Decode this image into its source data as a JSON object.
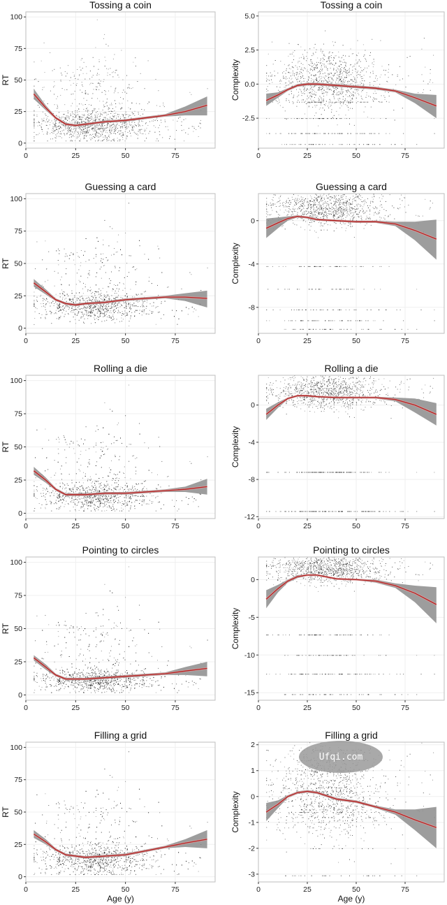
{
  "watermark": "Ufqi.com",
  "colors": {
    "fit_line": "#b22222",
    "ci_band": "#8c8c8c",
    "points": "#1a1a1a",
    "frame": "#bdbdbd",
    "grid": "#efefef"
  },
  "chart_data": [
    {
      "type": "scatter",
      "title": "Tossing a coin",
      "xlabel": "",
      "ylabel": "RT",
      "xlim": [
        0,
        95
      ],
      "ylim": [
        -4,
        104
      ],
      "xticks": [
        0,
        25,
        50,
        75
      ],
      "yticks": [
        0,
        25,
        50,
        75,
        100
      ],
      "tick_labels": [
        "0",
        "25",
        "50",
        "75",
        "100"
      ],
      "x_tick_labels": [
        "0",
        "25",
        "50",
        "75"
      ],
      "fit": {
        "x": [
          4,
          10,
          15,
          20,
          25,
          30,
          40,
          50,
          60,
          70,
          80,
          91
        ],
        "y": [
          39,
          28,
          20,
          15,
          14,
          15,
          17,
          18,
          20,
          22,
          25,
          30
        ],
        "ci_low": [
          35,
          26,
          19,
          14,
          13,
          14,
          16,
          17,
          19,
          21,
          22,
          22
        ],
        "ci_high": [
          43,
          30,
          21,
          16,
          15,
          16,
          18,
          19,
          21,
          23,
          29,
          37
        ]
      },
      "scatter": {
        "n": 1300,
        "center_x": 33,
        "center_y": 14,
        "spread_x": 14,
        "spread_y": 10,
        "discrete_rows": []
      }
    },
    {
      "type": "scatter",
      "title": "Tossing a coin",
      "xlabel": "",
      "ylabel": "Complexity",
      "xlim": [
        0,
        95
      ],
      "ylim": [
        -4.7,
        5.3
      ],
      "xticks": [
        0,
        25,
        50,
        75
      ],
      "yticks": [
        -2.5,
        0.0,
        2.5,
        5.0
      ],
      "tick_labels": [
        "-2.5",
        "0.0",
        "2.5",
        "5.0"
      ],
      "x_tick_labels": [
        "0",
        "25",
        "50",
        "75"
      ],
      "fit": {
        "x": [
          4,
          10,
          15,
          20,
          25,
          30,
          40,
          50,
          60,
          70,
          80,
          91
        ],
        "y": [
          -1.2,
          -0.8,
          -0.4,
          -0.1,
          0.0,
          0.0,
          -0.1,
          -0.2,
          -0.3,
          -0.5,
          -1.0,
          -1.6
        ],
        "ci_low": [
          -1.6,
          -1.0,
          -0.5,
          -0.2,
          -0.1,
          -0.1,
          -0.2,
          -0.3,
          -0.4,
          -0.6,
          -1.4,
          -2.5
        ],
        "ci_high": [
          -0.7,
          -0.6,
          -0.3,
          0.0,
          0.1,
          0.1,
          0.0,
          -0.1,
          -0.2,
          -0.4,
          -0.7,
          -0.8
        ]
      },
      "scatter": {
        "n": 1300,
        "center_x": 35,
        "center_y": 0.3,
        "spread_x": 14,
        "spread_y": 1.1,
        "discrete_rows": [
          -4.4,
          -3.6,
          -2.5,
          -1.3
        ]
      }
    },
    {
      "type": "scatter",
      "title": "Guessing a card",
      "xlabel": "",
      "ylabel": "RT",
      "xlim": [
        0,
        95
      ],
      "ylim": [
        -4,
        104
      ],
      "xticks": [
        0,
        25,
        50,
        75
      ],
      "yticks": [
        0,
        25,
        50,
        75,
        100
      ],
      "tick_labels": [
        "0",
        "25",
        "50",
        "75",
        "100"
      ],
      "x_tick_labels": [
        "0",
        "25",
        "50",
        "75"
      ],
      "fit": {
        "x": [
          4,
          10,
          15,
          20,
          25,
          30,
          40,
          50,
          60,
          70,
          80,
          91
        ],
        "y": [
          35,
          28,
          22,
          19,
          18,
          19,
          20,
          22,
          23,
          24,
          24,
          23
        ],
        "ci_low": [
          32,
          26,
          21,
          18,
          17,
          18,
          19,
          21,
          22,
          23,
          21,
          16
        ],
        "ci_high": [
          38,
          30,
          23,
          20,
          19,
          20,
          21,
          23,
          24,
          25,
          27,
          29
        ]
      },
      "scatter": {
        "n": 1300,
        "center_x": 35,
        "center_y": 17,
        "spread_x": 14,
        "spread_y": 9,
        "discrete_rows": []
      }
    },
    {
      "type": "scatter",
      "title": "Guessing a card",
      "xlabel": "",
      "ylabel": "Complexity",
      "xlim": [
        0,
        95
      ],
      "ylim": [
        -10.4,
        2.5
      ],
      "xticks": [
        0,
        25,
        50,
        75
      ],
      "yticks": [
        -8,
        -4,
        0
      ],
      "tick_labels": [
        "-8",
        "-4",
        "0"
      ],
      "x_tick_labels": [
        "0",
        "25",
        "50",
        "75"
      ],
      "fit": {
        "x": [
          4,
          10,
          15,
          20,
          25,
          30,
          40,
          50,
          60,
          70,
          80,
          91
        ],
        "y": [
          -0.7,
          -0.2,
          0.2,
          0.4,
          0.3,
          0.1,
          0.0,
          -0.1,
          -0.1,
          -0.3,
          -0.9,
          -1.7
        ],
        "ci_low": [
          -1.6,
          -0.7,
          0.0,
          0.3,
          0.2,
          0.0,
          -0.1,
          -0.2,
          -0.2,
          -0.5,
          -1.8,
          -3.6
        ],
        "ci_high": [
          0.2,
          0.3,
          0.4,
          0.5,
          0.4,
          0.2,
          0.1,
          0.0,
          0.0,
          -0.1,
          -0.1,
          0.1
        ]
      },
      "scatter": {
        "n": 1300,
        "center_x": 35,
        "center_y": 1.2,
        "spread_x": 14,
        "spread_y": 0.9,
        "discrete_rows": [
          -10,
          -9.2,
          -8.2,
          -6.3,
          -4.2
        ]
      }
    },
    {
      "type": "scatter",
      "title": "Rolling a die",
      "xlabel": "",
      "ylabel": "RT",
      "xlim": [
        0,
        95
      ],
      "ylim": [
        -4,
        104
      ],
      "xticks": [
        0,
        25,
        50,
        75
      ],
      "yticks": [
        0,
        25,
        50,
        75,
        100
      ],
      "tick_labels": [
        "0",
        "25",
        "50",
        "75",
        "100"
      ],
      "x_tick_labels": [
        "0",
        "25",
        "50",
        "75"
      ],
      "fit": {
        "x": [
          4,
          10,
          15,
          20,
          25,
          30,
          40,
          50,
          60,
          70,
          80,
          91
        ],
        "y": [
          32,
          25,
          18,
          14,
          14,
          14,
          15,
          15,
          16,
          17,
          18,
          20
        ],
        "ci_low": [
          29,
          23,
          17,
          13,
          13,
          13,
          14,
          14,
          15,
          16,
          16,
          14
        ],
        "ci_high": [
          35,
          27,
          19,
          15,
          15,
          15,
          16,
          16,
          17,
          18,
          20,
          26
        ]
      },
      "scatter": {
        "n": 1300,
        "center_x": 35,
        "center_y": 13,
        "spread_x": 14,
        "spread_y": 9,
        "discrete_rows": []
      }
    },
    {
      "type": "scatter",
      "title": "Rolling a die",
      "xlabel": "",
      "ylabel": "Complexity",
      "xlim": [
        0,
        95
      ],
      "ylim": [
        -12.2,
        3.2
      ],
      "xticks": [
        0,
        25,
        50,
        75
      ],
      "yticks": [
        -12,
        -8,
        -4,
        0
      ],
      "tick_labels": [
        "-12",
        "-8",
        "-4",
        "0"
      ],
      "x_tick_labels": [
        "0",
        "25",
        "50",
        "75"
      ],
      "fit": {
        "x": [
          4,
          10,
          15,
          20,
          25,
          30,
          40,
          50,
          60,
          70,
          80,
          91
        ],
        "y": [
          -1.0,
          0.0,
          0.7,
          1.0,
          1.0,
          0.9,
          0.8,
          0.8,
          0.8,
          0.6,
          0.0,
          -1.0
        ],
        "ci_low": [
          -1.6,
          -0.3,
          0.6,
          0.9,
          0.9,
          0.8,
          0.7,
          0.7,
          0.7,
          0.4,
          -0.8,
          -2.2
        ],
        "ci_high": [
          -0.4,
          0.3,
          0.8,
          1.1,
          1.1,
          1.0,
          0.9,
          0.9,
          0.9,
          0.8,
          0.7,
          0.2
        ]
      },
      "scatter": {
        "n": 1300,
        "center_x": 35,
        "center_y": 1.4,
        "spread_x": 14,
        "spread_y": 0.9,
        "discrete_rows": [
          -11.4,
          -7.2
        ]
      }
    },
    {
      "type": "scatter",
      "title": "Pointing to circles",
      "xlabel": "",
      "ylabel": "RT",
      "xlim": [
        0,
        95
      ],
      "ylim": [
        -4,
        104
      ],
      "xticks": [
        0,
        25,
        50,
        75
      ],
      "yticks": [
        0,
        25,
        50,
        75,
        100
      ],
      "tick_labels": [
        "0",
        "25",
        "50",
        "75",
        "100"
      ],
      "x_tick_labels": [
        "0",
        "25",
        "50",
        "75"
      ],
      "fit": {
        "x": [
          4,
          10,
          15,
          20,
          25,
          30,
          40,
          50,
          60,
          70,
          80,
          91
        ],
        "y": [
          28,
          21,
          15,
          12,
          12,
          12,
          13,
          14,
          15,
          16,
          18,
          20
        ],
        "ci_low": [
          26,
          19,
          14,
          11,
          11,
          11,
          12,
          13,
          14,
          15,
          15,
          14
        ],
        "ci_high": [
          30,
          23,
          16,
          13,
          13,
          13,
          14,
          15,
          16,
          17,
          21,
          25
        ]
      },
      "scatter": {
        "n": 1300,
        "center_x": 35,
        "center_y": 11,
        "spread_x": 14,
        "spread_y": 7,
        "discrete_rows": []
      }
    },
    {
      "type": "scatter",
      "title": "Pointing to circles",
      "xlabel": "",
      "ylabel": "Complexity",
      "xlim": [
        0,
        95
      ],
      "ylim": [
        -16,
        3
      ],
      "xticks": [
        0,
        25,
        50,
        75
      ],
      "yticks": [
        -15,
        -10,
        -5,
        0
      ],
      "tick_labels": [
        "-15",
        "-10",
        "-5",
        "0"
      ],
      "x_tick_labels": [
        "0",
        "25",
        "50",
        "75"
      ],
      "fit": {
        "x": [
          4,
          10,
          15,
          20,
          25,
          30,
          40,
          50,
          60,
          70,
          80,
          91
        ],
        "y": [
          -2.6,
          -1.2,
          -0.2,
          0.4,
          0.6,
          0.6,
          0.1,
          0.0,
          -0.2,
          -0.8,
          -1.8,
          -3.3
        ],
        "ci_low": [
          -3.8,
          -1.7,
          -0.4,
          0.2,
          0.5,
          0.5,
          0.0,
          -0.1,
          -0.4,
          -1.1,
          -3.0,
          -5.8
        ],
        "ci_high": [
          -1.4,
          -0.7,
          0.0,
          0.6,
          0.7,
          0.7,
          0.2,
          0.1,
          0.0,
          -0.5,
          -0.8,
          -1.0
        ]
      },
      "scatter": {
        "n": 1300,
        "center_x": 35,
        "center_y": 1.5,
        "spread_x": 14,
        "spread_y": 1.0,
        "discrete_rows": [
          -15.2,
          -12.5,
          -10,
          -7.3
        ]
      }
    },
    {
      "type": "scatter",
      "title": "Filling a grid",
      "xlabel": "Age (y)",
      "ylabel": "RT",
      "xlim": [
        0,
        95
      ],
      "ylim": [
        -4,
        104
      ],
      "xticks": [
        0,
        25,
        50,
        75
      ],
      "yticks": [
        0,
        25,
        50,
        75,
        100
      ],
      "tick_labels": [
        "0",
        "25",
        "50",
        "75",
        "100"
      ],
      "x_tick_labels": [
        "0",
        "25",
        "50",
        "75"
      ],
      "fit": {
        "x": [
          4,
          10,
          15,
          20,
          25,
          30,
          40,
          50,
          60,
          70,
          80,
          91
        ],
        "y": [
          33,
          27,
          21,
          17,
          16,
          15,
          16,
          17,
          20,
          23,
          26,
          29
        ],
        "ci_low": [
          30,
          25,
          20,
          16,
          15,
          14,
          15,
          16,
          19,
          22,
          23,
          22
        ],
        "ci_high": [
          36,
          29,
          22,
          18,
          17,
          16,
          17,
          18,
          21,
          24,
          29,
          36
        ]
      },
      "scatter": {
        "n": 1300,
        "center_x": 35,
        "center_y": 13,
        "spread_x": 14,
        "spread_y": 10,
        "discrete_rows": []
      }
    },
    {
      "type": "scatter",
      "title": "Filling a grid",
      "xlabel": "Age (y)",
      "ylabel": "Complexity",
      "xlim": [
        0,
        95
      ],
      "ylim": [
        -3.3,
        2.1
      ],
      "xticks": [
        0,
        25,
        50,
        75
      ],
      "yticks": [
        -3,
        -2,
        -1,
        0,
        1,
        2
      ],
      "tick_labels": [
        "-3",
        "-2",
        "-1",
        "0",
        "1",
        "2"
      ],
      "x_tick_labels": [
        "0",
        "25",
        "50",
        "75"
      ],
      "fit": {
        "x": [
          4,
          10,
          15,
          20,
          25,
          30,
          40,
          50,
          60,
          70,
          80,
          91
        ],
        "y": [
          -0.6,
          -0.3,
          0.0,
          0.15,
          0.2,
          0.15,
          -0.1,
          -0.2,
          -0.4,
          -0.6,
          -0.9,
          -1.2
        ],
        "ci_low": [
          -0.95,
          -0.45,
          -0.05,
          0.1,
          0.15,
          0.1,
          -0.15,
          -0.25,
          -0.45,
          -0.7,
          -1.3,
          -2.0
        ],
        "ci_high": [
          -0.25,
          -0.15,
          0.05,
          0.2,
          0.25,
          0.2,
          -0.05,
          -0.15,
          -0.35,
          -0.5,
          -0.5,
          -0.4
        ]
      },
      "scatter": {
        "n": 1300,
        "center_x": 35,
        "center_y": 0.2,
        "spread_x": 14,
        "spread_y": 0.9,
        "discrete_rows": [
          -3.05,
          -2.0,
          -1.2,
          -0.8,
          -0.6,
          -0.5,
          0.2,
          0.35,
          1.0,
          1.4,
          1.8
        ]
      }
    }
  ]
}
